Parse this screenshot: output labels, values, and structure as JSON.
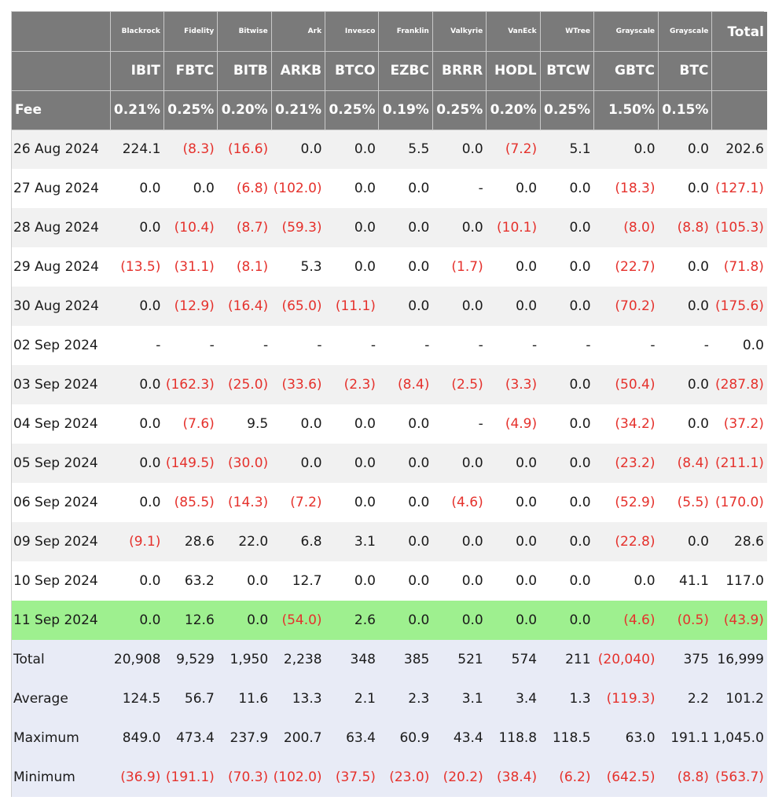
{
  "colors": {
    "header_bg": "#7a7a7a",
    "negative": "#e5312c",
    "highlight_row": "#9ef08f",
    "summary_bg": "#e8ebf6",
    "alt_row": "#f1f1f1"
  },
  "header": {
    "issuers": [
      "Blackrock",
      "Fidelity",
      "Bitwise",
      "Ark",
      "Invesco",
      "Franklin",
      "Valkyrie",
      "VanEck",
      "WTree",
      "Grayscale",
      "Grayscale"
    ],
    "total_label": "Total",
    "tickers": [
      "IBIT",
      "FBTC",
      "BITB",
      "ARKB",
      "BTCO",
      "EZBC",
      "BRRR",
      "HODL",
      "BTCW",
      "GBTC",
      "BTC"
    ],
    "fee_label": "Fee",
    "fees": [
      "0.21%",
      "0.25%",
      "0.20%",
      "0.21%",
      "0.25%",
      "0.19%",
      "0.25%",
      "0.20%",
      "0.25%",
      "1.50%",
      "0.15%"
    ]
  },
  "rows": [
    {
      "date": "26 Aug 2024",
      "values": [
        "224.1",
        "(8.3)",
        "(16.6)",
        "0.0",
        "0.0",
        "5.5",
        "0.0",
        "(7.2)",
        "5.1",
        "0.0",
        "0.0"
      ],
      "total": "202.6"
    },
    {
      "date": "27 Aug 2024",
      "values": [
        "0.0",
        "0.0",
        "(6.8)",
        "(102.0)",
        "0.0",
        "0.0",
        "-",
        "0.0",
        "0.0",
        "(18.3)",
        "0.0"
      ],
      "total": "(127.1)"
    },
    {
      "date": "28 Aug 2024",
      "values": [
        "0.0",
        "(10.4)",
        "(8.7)",
        "(59.3)",
        "0.0",
        "0.0",
        "0.0",
        "(10.1)",
        "0.0",
        "(8.0)",
        "(8.8)"
      ],
      "total": "(105.3)"
    },
    {
      "date": "29 Aug 2024",
      "values": [
        "(13.5)",
        "(31.1)",
        "(8.1)",
        "5.3",
        "0.0",
        "0.0",
        "(1.7)",
        "0.0",
        "0.0",
        "(22.7)",
        "0.0"
      ],
      "total": "(71.8)"
    },
    {
      "date": "30 Aug 2024",
      "values": [
        "0.0",
        "(12.9)",
        "(16.4)",
        "(65.0)",
        "(11.1)",
        "0.0",
        "0.0",
        "0.0",
        "0.0",
        "(70.2)",
        "0.0"
      ],
      "total": "(175.6)"
    },
    {
      "date": "02 Sep 2024",
      "values": [
        "-",
        "-",
        "-",
        "-",
        "-",
        "-",
        "-",
        "-",
        "-",
        "-",
        "-"
      ],
      "total": "0.0"
    },
    {
      "date": "03 Sep 2024",
      "values": [
        "0.0",
        "(162.3)",
        "(25.0)",
        "(33.6)",
        "(2.3)",
        "(8.4)",
        "(2.5)",
        "(3.3)",
        "0.0",
        "(50.4)",
        "0.0"
      ],
      "total": "(287.8)"
    },
    {
      "date": "04 Sep 2024",
      "values": [
        "0.0",
        "(7.6)",
        "9.5",
        "0.0",
        "0.0",
        "0.0",
        "-",
        "(4.9)",
        "0.0",
        "(34.2)",
        "0.0"
      ],
      "total": "(37.2)"
    },
    {
      "date": "05 Sep 2024",
      "values": [
        "0.0",
        "(149.5)",
        "(30.0)",
        "0.0",
        "0.0",
        "0.0",
        "0.0",
        "0.0",
        "0.0",
        "(23.2)",
        "(8.4)"
      ],
      "total": "(211.1)"
    },
    {
      "date": "06 Sep 2024",
      "values": [
        "0.0",
        "(85.5)",
        "(14.3)",
        "(7.2)",
        "0.0",
        "0.0",
        "(4.6)",
        "0.0",
        "0.0",
        "(52.9)",
        "(5.5)"
      ],
      "total": "(170.0)"
    },
    {
      "date": "09 Sep 2024",
      "values": [
        "(9.1)",
        "28.6",
        "22.0",
        "6.8",
        "3.1",
        "0.0",
        "0.0",
        "0.0",
        "0.0",
        "(22.8)",
        "0.0"
      ],
      "total": "28.6"
    },
    {
      "date": "10 Sep 2024",
      "values": [
        "0.0",
        "63.2",
        "0.0",
        "12.7",
        "0.0",
        "0.0",
        "0.0",
        "0.0",
        "0.0",
        "0.0",
        "41.1"
      ],
      "total": "117.0"
    },
    {
      "date": "11 Sep 2024",
      "values": [
        "0.0",
        "12.6",
        "0.0",
        "(54.0)",
        "2.6",
        "0.0",
        "0.0",
        "0.0",
        "0.0",
        "(4.6)",
        "(0.5)"
      ],
      "total": "(43.9)",
      "highlight": true
    }
  ],
  "summary": [
    {
      "label": "Total",
      "values": [
        "20,908",
        "9,529",
        "1,950",
        "2,238",
        "348",
        "385",
        "521",
        "574",
        "211",
        "(20,040)",
        "375"
      ],
      "total": "16,999"
    },
    {
      "label": "Average",
      "values": [
        "124.5",
        "56.7",
        "11.6",
        "13.3",
        "2.1",
        "2.3",
        "3.1",
        "3.4",
        "1.3",
        "(119.3)",
        "2.2"
      ],
      "total": "101.2"
    },
    {
      "label": "Maximum",
      "values": [
        "849.0",
        "473.4",
        "237.9",
        "200.7",
        "63.4",
        "60.9",
        "43.4",
        "118.8",
        "118.5",
        "63.0",
        "191.1"
      ],
      "total": "1,045.0"
    },
    {
      "label": "Minimum",
      "values": [
        "(36.9)",
        "(191.1)",
        "(70.3)",
        "(102.0)",
        "(37.5)",
        "(23.0)",
        "(20.2)",
        "(38.4)",
        "(6.2)",
        "(642.5)",
        "(8.8)"
      ],
      "total": "(563.7)"
    }
  ]
}
